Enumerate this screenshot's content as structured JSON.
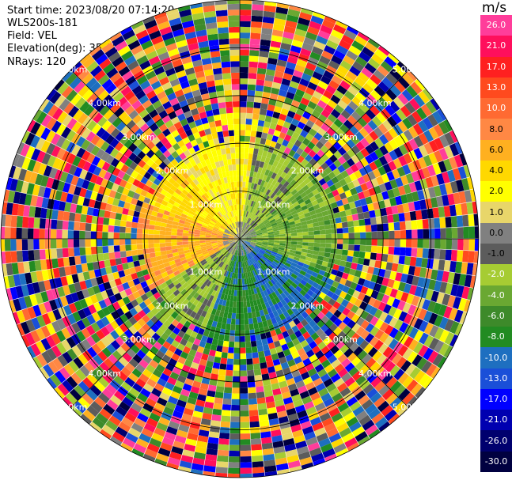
{
  "header": {
    "start_time": "Start time: 2023/08/20 07:14:20",
    "site": "WLS200s-181",
    "field": "Field: VEL",
    "elevation": "Elevation(deg): 35.30",
    "nrays": "NRays: 120"
  },
  "colorbar": {
    "unit": "m/s",
    "levels": [
      {
        "label": "26.0",
        "color": "#ff3d9a"
      },
      {
        "label": "21.0",
        "color": "#ff0f5c"
      },
      {
        "label": "17.0",
        "color": "#ff2020"
      },
      {
        "label": "13.0",
        "color": "#ff4a1e"
      },
      {
        "label": "10.0",
        "color": "#ff6a32"
      },
      {
        "label": "8.0",
        "color": "#ff8844"
      },
      {
        "label": "6.0",
        "color": "#ffb020"
      },
      {
        "label": "4.0",
        "color": "#ffd800"
      },
      {
        "label": "2.0",
        "color": "#ffff00"
      },
      {
        "label": "1.0",
        "color": "#e8d66a"
      },
      {
        "label": "0.0",
        "color": "#808080"
      },
      {
        "label": "-1.0",
        "color": "#5c5c5c"
      },
      {
        "label": "-2.0",
        "color": "#a6cc33"
      },
      {
        "label": "-4.0",
        "color": "#6aa832"
      },
      {
        "label": "-6.0",
        "color": "#3d8a2a"
      },
      {
        "label": "-8.0",
        "color": "#228b22"
      },
      {
        "label": "-10.0",
        "color": "#1e6fc0"
      },
      {
        "label": "-13.0",
        "color": "#1a4fd8"
      },
      {
        "label": "-17.0",
        "color": "#0000ff"
      },
      {
        "label": "-21.0",
        "color": "#0000b0"
      },
      {
        "label": "-26.0",
        "color": "#00006e"
      },
      {
        "label": "-30.0",
        "color": "#000040"
      }
    ]
  },
  "chart_data": {
    "type": "heatmap",
    "projection": "polar PPI",
    "field": "VEL",
    "nrays": 120,
    "range_rings_km": [
      1.0,
      2.0,
      3.0,
      4.0,
      5.0
    ],
    "range_ring_labels": [
      "1.00km",
      "2.00km",
      "3.00km",
      "4.00km",
      "5.00km"
    ],
    "max_range_km": 5.0,
    "spokes": [
      "0",
      "45",
      "90",
      "135",
      "180",
      "225",
      "270",
      "315"
    ],
    "clean_range_km": 2.1,
    "sectors": [
      {
        "from_deg": 320,
        "to_deg": 10,
        "dominant": "2.0"
      },
      {
        "from_deg": 10,
        "to_deg": 50,
        "dominant": "-2.0"
      },
      {
        "from_deg": 50,
        "to_deg": 110,
        "dominant": "-4.0"
      },
      {
        "from_deg": 110,
        "to_deg": 160,
        "dominant": "-10.0"
      },
      {
        "from_deg": 160,
        "to_deg": 200,
        "dominant": "-8.0"
      },
      {
        "from_deg": 200,
        "to_deg": 240,
        "dominant": "-2.0"
      },
      {
        "from_deg": 240,
        "to_deg": 290,
        "dominant": "6.0"
      },
      {
        "from_deg": 290,
        "to_deg": 320,
        "dominant": "4.0"
      }
    ],
    "colorbar_range": [
      -30.0,
      26.0
    ]
  }
}
